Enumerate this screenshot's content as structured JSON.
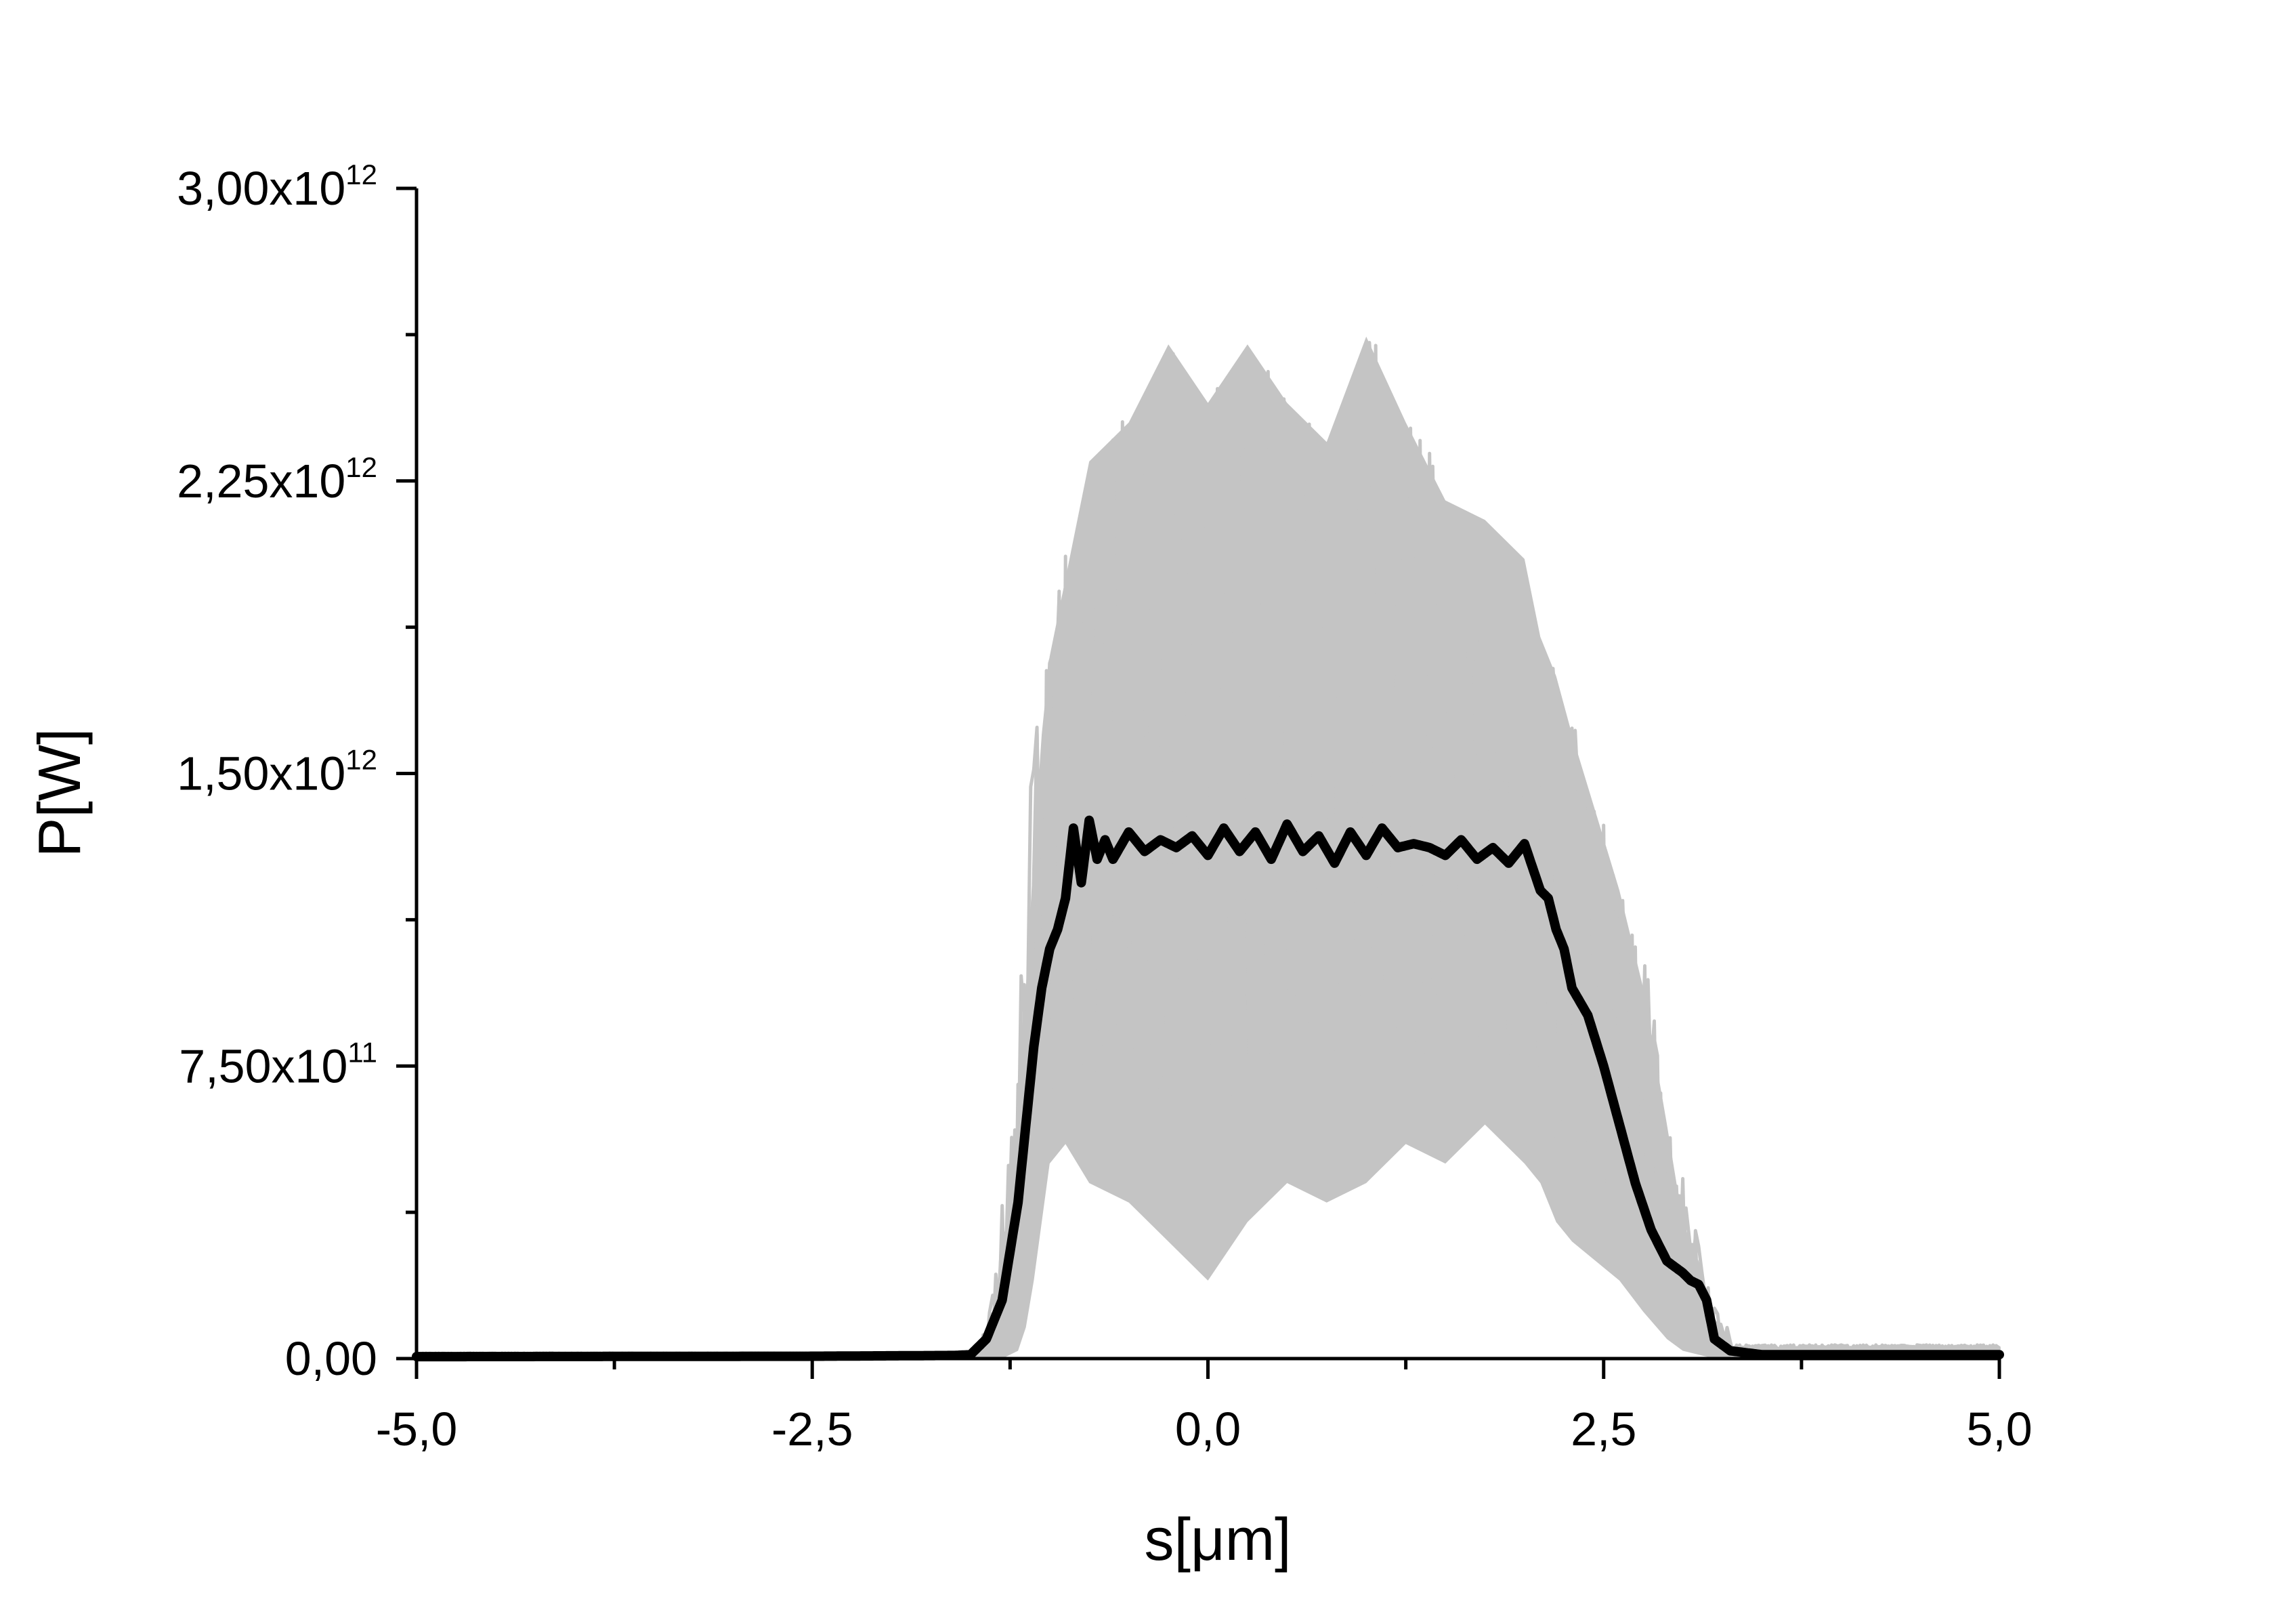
{
  "chart_data": {
    "type": "line",
    "title": "",
    "xlabel": "s[μm]",
    "ylabel": "P[W]",
    "xlim": [
      -5.0,
      5.0
    ],
    "ylim": [
      0,
      3000000000000.0
    ],
    "x_ticks": [
      {
        "value": -5.0,
        "label": "-5,0"
      },
      {
        "value": -2.5,
        "label": "-2,5"
      },
      {
        "value": 0.0,
        "label": "0,0"
      },
      {
        "value": 2.5,
        "label": "2,5"
      },
      {
        "value": 5.0,
        "label": "5,0"
      }
    ],
    "y_ticks": [
      {
        "value": 0,
        "mantissa": "0,00",
        "exponent": ""
      },
      {
        "value": 750000000000.0,
        "mantissa": "7,50x10",
        "exponent": "11"
      },
      {
        "value": 1500000000000.0,
        "mantissa": "1,50x10",
        "exponent": "12"
      },
      {
        "value": 2250000000000.0,
        "mantissa": "2,25x10",
        "exponent": "12"
      },
      {
        "value": 3000000000000.0,
        "mantissa": "3,00x10",
        "exponent": "12"
      }
    ],
    "x_minor_step": 1.25,
    "y_minor_step": 375000000000.0,
    "grid": false,
    "legend": "none",
    "colors": {
      "shots": "#c4c4c4",
      "average": "#000000",
      "axis": "#000000"
    },
    "series": [
      {
        "role": "individual-shots-envelope",
        "style": "band",
        "x": [
          -1.4,
          -1.3,
          -1.2,
          -1.15,
          -1.1,
          -1.05,
          -1.0,
          -0.9,
          -0.75,
          -0.5,
          -0.25,
          0.0,
          0.25,
          0.5,
          0.75,
          1.0,
          1.25,
          1.5,
          1.75,
          2.0,
          2.1,
          2.2,
          2.3,
          2.45,
          2.6,
          2.75,
          2.9,
          3.0,
          3.1,
          3.2,
          3.3
        ],
        "upper": [
          20000000000.0,
          200000000000.0,
          600000000000.0,
          950000000000.0,
          1300000000000.0,
          1600000000000.0,
          1800000000000.0,
          2000000000000.0,
          2300000000000.0,
          2400000000000.0,
          2600000000000.0,
          2450000000000.0,
          2600000000000.0,
          2450000000000.0,
          2350000000000.0,
          2620000000000.0,
          2400000000000.0,
          2200000000000.0,
          2150000000000.0,
          2050000000000.0,
          1850000000000.0,
          1750000000000.0,
          1600000000000.0,
          1400000000000.0,
          1200000000000.0,
          950000000000.0,
          600000000000.0,
          350000000000.0,
          250000000000.0,
          100000000000.0,
          20000000000.0
        ],
        "lower": [
          0.0,
          0.0,
          20000000000.0,
          80000000000.0,
          200000000000.0,
          350000000000.0,
          500000000000.0,
          550000000000.0,
          450000000000.0,
          400000000000.0,
          300000000000.0,
          200000000000.0,
          350000000000.0,
          450000000000.0,
          400000000000.0,
          450000000000.0,
          550000000000.0,
          500000000000.0,
          600000000000.0,
          500000000000.0,
          450000000000.0,
          350000000000.0,
          300000000000.0,
          250000000000.0,
          200000000000.0,
          120000000000.0,
          50000000000.0,
          20000000000.0,
          10000000000.0,
          0.0,
          0.0
        ]
      },
      {
        "role": "average",
        "style": "line",
        "x": [
          -5.0,
          -2.5,
          -1.6,
          -1.5,
          -1.4,
          -1.3,
          -1.2,
          -1.15,
          -1.1,
          -1.05,
          -1.0,
          -0.95,
          -0.9,
          -0.85,
          -0.8,
          -0.75,
          -0.7,
          -0.65,
          -0.6,
          -0.5,
          -0.4,
          -0.3,
          -0.2,
          -0.1,
          0.0,
          0.1,
          0.2,
          0.3,
          0.4,
          0.5,
          0.6,
          0.7,
          0.8,
          0.9,
          1.0,
          1.1,
          1.2,
          1.3,
          1.4,
          1.5,
          1.6,
          1.7,
          1.8,
          1.9,
          2.0,
          2.05,
          2.1,
          2.15,
          2.2,
          2.25,
          2.3,
          2.4,
          2.5,
          2.6,
          2.7,
          2.8,
          2.9,
          3.0,
          3.05,
          3.1,
          3.15,
          3.2,
          3.3,
          3.5,
          4.0,
          5.0
        ],
        "y": [
          5000000000.0,
          6000000000.0,
          8000000000.0,
          10000000000.0,
          50000000000.0,
          150000000000.0,
          400000000000.0,
          600000000000.0,
          800000000000.0,
          950000000000.0,
          1050000000000.0,
          1100000000000.0,
          1180000000000.0,
          1360000000000.0,
          1220000000000.0,
          1380000000000.0,
          1280000000000.0,
          1330000000000.0,
          1280000000000.0,
          1350000000000.0,
          1300000000000.0,
          1330000000000.0,
          1310000000000.0,
          1340000000000.0,
          1290000000000.0,
          1360000000000.0,
          1300000000000.0,
          1350000000000.0,
          1280000000000.0,
          1370000000000.0,
          1300000000000.0,
          1340000000000.0,
          1270000000000.0,
          1350000000000.0,
          1290000000000.0,
          1360000000000.0,
          1310000000000.0,
          1320000000000.0,
          1310000000000.0,
          1290000000000.0,
          1330000000000.0,
          1280000000000.0,
          1310000000000.0,
          1270000000000.0,
          1320000000000.0,
          1260000000000.0,
          1200000000000.0,
          1180000000000.0,
          1100000000000.0,
          1050000000000.0,
          950000000000.0,
          880000000000.0,
          750000000000.0,
          600000000000.0,
          450000000000.0,
          330000000000.0,
          250000000000.0,
          220000000000.0,
          200000000000.0,
          190000000000.0,
          150000000000.0,
          50000000000.0,
          20000000000.0,
          10000000000.0,
          10000000000.0,
          10000000000.0
        ]
      }
    ]
  }
}
